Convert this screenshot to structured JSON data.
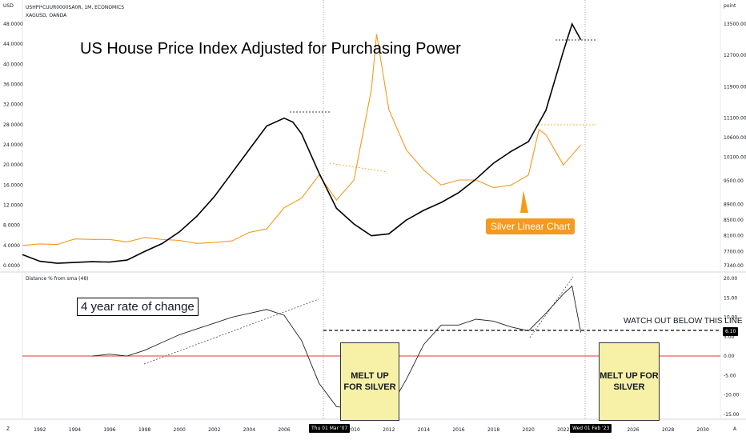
{
  "header": {
    "left_axis_unit": "USD",
    "right_axis_unit": "point",
    "series_line1": "USHPI*CUUR0000SA0R, 1M, ECONOMICS",
    "series_line2": "XAGUSD, OANDA"
  },
  "annotations": {
    "main_title": "US House Price Index Adjusted for Purchasing Power",
    "silver_label": "Silver Linear Chart",
    "roc_label": "4 year rate of change",
    "watch_label": "WATCH OUT BELOW THIS LINE",
    "melt_up_1": "MELT UP FOR SILVER",
    "melt_up_2": "MELT UP FOR SILVER"
  },
  "lower_pane": {
    "indicator_label": "Distance % from sma (48)",
    "current_value_tag": "6.10"
  },
  "crosshair_dates": {
    "first": "Thu 01 Mar '07",
    "second": "Wed 01 Feb '23"
  },
  "footer": {
    "left_icon": "Z",
    "right_icon": "A"
  },
  "colors": {
    "house_price": "#000000",
    "silver": "#f39a1f",
    "zero_line": "#e53935",
    "melt_box": "#f7f1a8"
  },
  "chart_data": [
    {
      "type": "line",
      "title": "US House Price Index Adjusted for Purchasing Power",
      "x_tick_labels": [
        "1992",
        "1994",
        "1996",
        "1998",
        "2000",
        "2002",
        "2004",
        "2006",
        "2008",
        "2010",
        "2012",
        "2014",
        "2016",
        "2018",
        "2020",
        "2022",
        "2024",
        "2026",
        "2028",
        "2030"
      ],
      "left_axis_ticks": [
        "0.0000",
        "4.0000",
        "8.0000",
        "12.0000",
        "16.0000",
        "20.0000",
        "24.0000",
        "28.0000",
        "32.0000",
        "36.0000",
        "40.0000",
        "44.0000",
        "48.0000"
      ],
      "right_axis_ticks": [
        "7340.00",
        "7700.00",
        "8100.00",
        "8500.00",
        "8900.00",
        "9500.00",
        "10100.00",
        "10600.00",
        "11100.00",
        "11900.00",
        "12700.00",
        "13500.00"
      ],
      "ylim_left": [
        0,
        48
      ],
      "ylim_right": [
        7340,
        13500
      ],
      "series": [
        {
          "name": "USHPI*CUUR0000SA0R",
          "axis": "right",
          "x": [
            1991,
            1992,
            1993,
            1994,
            1995,
            1996,
            1997,
            1998,
            1999,
            2000,
            2001,
            2002,
            2003,
            2004,
            2005,
            2006,
            2006.5,
            2007,
            2008,
            2009,
            2010,
            2011,
            2012,
            2013,
            2014,
            2015,
            2016,
            2017,
            2018,
            2019,
            2020,
            2021,
            2022,
            2022.5,
            2023
          ],
          "y": [
            7620,
            7450,
            7400,
            7420,
            7440,
            7430,
            7480,
            7700,
            7900,
            8200,
            8600,
            9100,
            9700,
            10300,
            10900,
            11100,
            11000,
            10700,
            9700,
            8800,
            8400,
            8100,
            8150,
            8500,
            8750,
            8950,
            9200,
            9550,
            9950,
            10250,
            10500,
            11300,
            12800,
            13500,
            13100
          ]
        },
        {
          "name": "XAGUSD",
          "axis": "left",
          "x": [
            1991,
            1992,
            1993,
            1994,
            1995,
            1996,
            1997,
            1998,
            1999,
            2000,
            2001,
            2002,
            2003,
            2004,
            2005,
            2006,
            2007,
            2008,
            2009,
            2010,
            2011,
            2011.3,
            2012,
            2013,
            2014,
            2015,
            2016,
            2017,
            2018,
            2019,
            2020,
            2020.6,
            2021,
            2022,
            2023
          ],
          "y": [
            4.0,
            4.3,
            4.2,
            5.3,
            5.2,
            5.2,
            4.7,
            5.6,
            5.2,
            5.0,
            4.4,
            4.6,
            4.9,
            6.6,
            7.3,
            11.5,
            13.4,
            18.0,
            13.0,
            17.0,
            35.0,
            46.0,
            31.0,
            23.0,
            19.0,
            16.0,
            17.0,
            17.0,
            15.5,
            16.0,
            18.0,
            27.0,
            26.0,
            20.0,
            24.0
          ]
        }
      ]
    },
    {
      "type": "line",
      "title": "Distance % from sma (48)",
      "right_axis_ticks": [
        "20.00",
        "15.00",
        "10.00",
        "5.00",
        "0.00",
        "-5.00",
        "-10.00",
        "-15.00"
      ],
      "ylim": [
        -15,
        20
      ],
      "series": [
        {
          "name": "Distance % from sma (48)",
          "x": [
            1995,
            1996,
            1997,
            1998,
            1999,
            2000,
            2001,
            2002,
            2003,
            2004,
            2005,
            2006,
            2007,
            2008,
            2009,
            2010,
            2011,
            2012,
            2013,
            2014,
            2015,
            2016,
            2017,
            2018,
            2019,
            2020,
            2021,
            2022,
            2022.5,
            2023
          ],
          "y": [
            0.0,
            0.5,
            0.0,
            1.5,
            3.5,
            5.5,
            7.0,
            8.5,
            10.0,
            11.0,
            12.0,
            10.5,
            4.0,
            -7.0,
            -13.0,
            -13.5,
            -13.0,
            -13.8,
            -6.0,
            3.0,
            8.0,
            8.0,
            9.5,
            9.0,
            7.5,
            6.5,
            11.0,
            16.0,
            18.0,
            6.1
          ]
        }
      ]
    }
  ]
}
